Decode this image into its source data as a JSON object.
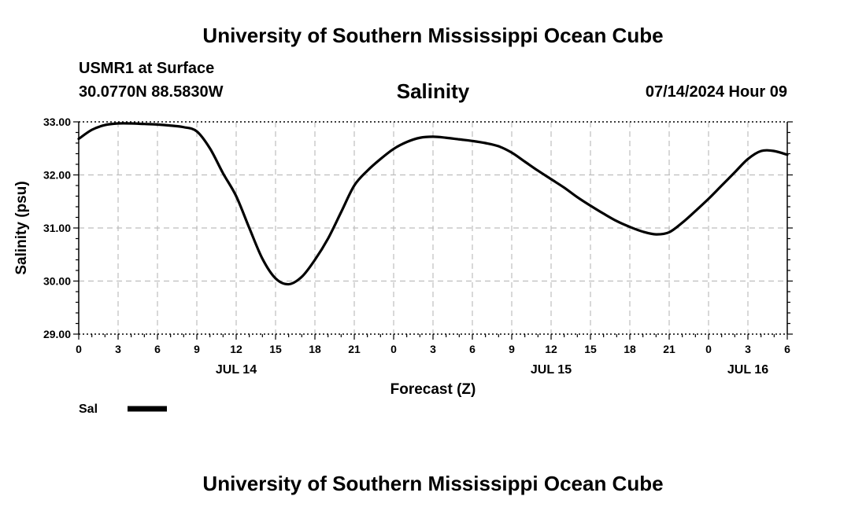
{
  "header": {
    "title": "University of Southern Mississippi Ocean Cube",
    "station": "USMR1 at Surface",
    "coordinates": "30.0770N  88.5830W",
    "valid_time": "07/14/2024 Hour 09"
  },
  "footer": {
    "title": "University of Southern Mississippi Ocean Cube"
  },
  "chart_data": {
    "type": "line",
    "title": "Salinity",
    "xlabel": "Forecast (Z)",
    "ylabel": "Salinity (psu)",
    "xlim": [
      0,
      54
    ],
    "ylim": [
      29.0,
      33.0
    ],
    "y_ticks": [
      "29.00",
      "30.00",
      "31.00",
      "32.00",
      "33.00"
    ],
    "x_tick_labels": [
      "0",
      "3",
      "6",
      "9",
      "12",
      "15",
      "18",
      "21",
      "0",
      "3",
      "6",
      "9",
      "12",
      "15",
      "18",
      "21",
      "0",
      "3",
      "6"
    ],
    "day_labels": [
      {
        "label": "JUL 14",
        "hour": 12
      },
      {
        "label": "JUL 15",
        "hour": 36
      },
      {
        "label": "JUL 16",
        "hour": 51
      }
    ],
    "grid": true,
    "series": [
      {
        "name": "Sal",
        "color": "#000000",
        "x": [
          0,
          1,
          2,
          3,
          4,
          5,
          6,
          7,
          8,
          9,
          10,
          11,
          12,
          13,
          14,
          15,
          16,
          17,
          18,
          19,
          20,
          21,
          22,
          23,
          24,
          25,
          26,
          27,
          28,
          29,
          30,
          31,
          32,
          33,
          34,
          35,
          36,
          37,
          38,
          39,
          40,
          41,
          42,
          43,
          44,
          45,
          46,
          47,
          48,
          49,
          50,
          51,
          52,
          53,
          54
        ],
        "values": [
          32.68,
          32.85,
          32.94,
          32.97,
          32.97,
          32.96,
          32.95,
          32.93,
          32.9,
          32.82,
          32.5,
          32.03,
          31.6,
          31.0,
          30.42,
          30.05,
          29.94,
          30.08,
          30.4,
          30.8,
          31.3,
          31.8,
          32.08,
          32.3,
          32.49,
          32.62,
          32.7,
          32.72,
          32.7,
          32.67,
          32.64,
          32.6,
          32.54,
          32.42,
          32.25,
          32.08,
          31.92,
          31.76,
          31.58,
          31.42,
          31.27,
          31.13,
          31.02,
          30.93,
          30.88,
          30.92,
          31.1,
          31.32,
          31.55,
          31.8,
          32.05,
          32.3,
          32.45,
          32.45,
          32.38
        ]
      }
    ],
    "legend": {
      "position": "bottom-left",
      "entries": [
        "Sal"
      ]
    }
  }
}
